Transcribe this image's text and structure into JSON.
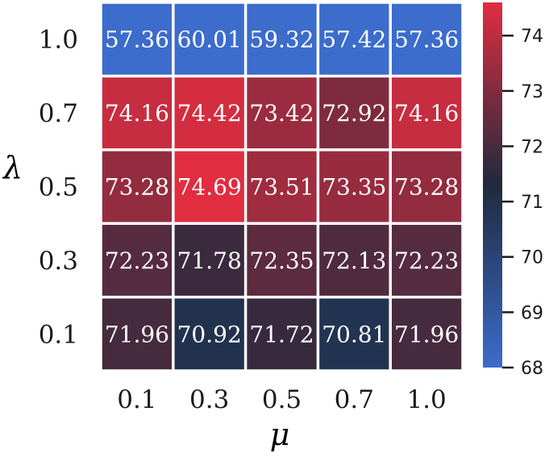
{
  "chart_data": {
    "type": "heatmap",
    "title": "",
    "xlabel": "μ",
    "ylabel": "λ",
    "x_categories": [
      "0.1",
      "0.3",
      "0.5",
      "0.7",
      "1.0"
    ],
    "y_categories": [
      "1.0",
      "0.7",
      "0.5",
      "0.3",
      "0.1"
    ],
    "values": [
      [
        57.36,
        60.01,
        59.32,
        57.42,
        57.36
      ],
      [
        74.16,
        74.42,
        73.42,
        72.92,
        74.16
      ],
      [
        73.28,
        74.69,
        73.51,
        73.35,
        73.28
      ],
      [
        72.23,
        71.78,
        72.35,
        72.13,
        72.23
      ],
      [
        71.96,
        70.92,
        71.72,
        70.81,
        71.96
      ]
    ],
    "value_labels": [
      [
        "57.36",
        "60.01",
        "59.32",
        "57.42",
        "57.36"
      ],
      [
        "74.16",
        "74.42",
        "73.42",
        "72.92",
        "74.16"
      ],
      [
        "73.28",
        "74.69",
        "73.51",
        "73.35",
        "73.28"
      ],
      [
        "72.23",
        "71.78",
        "72.35",
        "72.13",
        "72.23"
      ],
      [
        "71.96",
        "70.92",
        "71.72",
        "70.81",
        "71.96"
      ]
    ],
    "colorbar": {
      "vmin": 68,
      "vmax": 74.6,
      "ticks": [
        68,
        69,
        70,
        71,
        72,
        73,
        74
      ],
      "tick_labels": [
        "68",
        "69",
        "70",
        "71",
        "72",
        "73",
        "74"
      ],
      "colormap": [
        "#3c6ccc",
        "#1f2a3e",
        "#e02d40"
      ]
    }
  }
}
